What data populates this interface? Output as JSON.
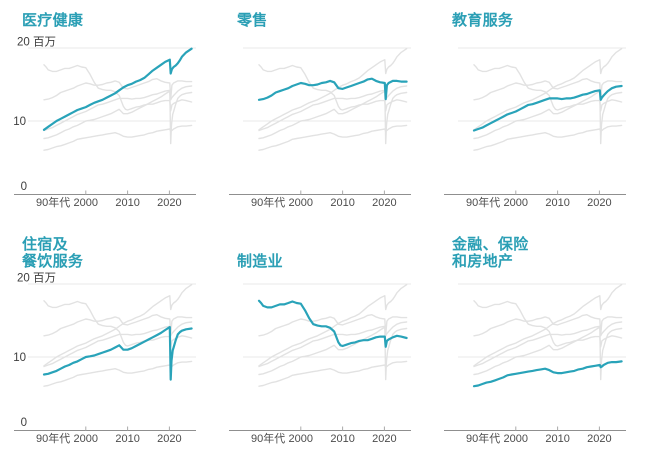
{
  "page": {
    "background": "#ffffff"
  },
  "colors": {
    "accent": "#29a3b9",
    "title_text": "#2b9fb5",
    "muted_line": "#e2e2e2",
    "gridline": "#e9e9e9",
    "axis_line": "#8f8f8f",
    "tick_mark": "#aaaaaa",
    "tick_label_text": "#4c4c4c",
    "y_label_text": "#3d3d3d"
  },
  "panels": [
    {
      "id": "healthcare",
      "title_lines": [
        "医疗健康"
      ],
      "series": "healthcare",
      "show_y_labels": true
    },
    {
      "id": "retail",
      "title_lines": [
        "零售"
      ],
      "series": "retail",
      "show_y_labels": false
    },
    {
      "id": "education",
      "title_lines": [
        "教育服务"
      ],
      "series": "education",
      "show_y_labels": false
    },
    {
      "id": "accommodation",
      "title_lines": [
        "住宿及",
        "餐饮服务"
      ],
      "series": "accommodation",
      "show_y_labels": true
    },
    {
      "id": "manufacturing",
      "title_lines": [
        "制造业"
      ],
      "series": "manufacturing",
      "show_y_labels": false
    },
    {
      "id": "finance",
      "title_lines": [
        "金融、保险",
        "和房地产"
      ],
      "series": "finance",
      "show_y_labels": false
    }
  ],
  "chart_data": {
    "type": "line",
    "unit": "百万",
    "x_range": [
      1989,
      2026
    ],
    "ylim": [
      0,
      20
    ],
    "grid": "horizontal-only",
    "legend_position": "none",
    "y_tick_labels": [
      {
        "value": 20,
        "label": "20 百万"
      },
      {
        "value": 10,
        "label": "10"
      },
      {
        "value": 0,
        "label": "0"
      }
    ],
    "x_tick_labels": [
      {
        "year": 1990,
        "label": "90年代",
        "tick": false,
        "anchor": "start"
      },
      {
        "year": 2000,
        "label": "2000",
        "tick": true,
        "anchor": "middle"
      },
      {
        "year": 2010,
        "label": "2010",
        "tick": true,
        "anchor": "middle"
      },
      {
        "year": 2020,
        "label": "2020",
        "tick": true,
        "anchor": "middle"
      }
    ],
    "series": [
      {
        "id": "healthcare",
        "name": "医疗健康",
        "values": [
          [
            1990,
            8.8
          ],
          [
            1991,
            9.2
          ],
          [
            1992,
            9.6
          ],
          [
            1993,
            10
          ],
          [
            1994,
            10.3
          ],
          [
            1995,
            10.6
          ],
          [
            1996,
            10.9
          ],
          [
            1997,
            11.2
          ],
          [
            1998,
            11.5
          ],
          [
            1999,
            11.7
          ],
          [
            2000,
            11.9
          ],
          [
            2001,
            12.2
          ],
          [
            2002,
            12.5
          ],
          [
            2003,
            12.7
          ],
          [
            2004,
            12.9
          ],
          [
            2005,
            13.2
          ],
          [
            2006,
            13.5
          ],
          [
            2007,
            13.8
          ],
          [
            2008,
            14.2
          ],
          [
            2009,
            14.6
          ],
          [
            2010,
            14.9
          ],
          [
            2011,
            15.1
          ],
          [
            2012,
            15.4
          ],
          [
            2013,
            15.6
          ],
          [
            2014,
            15.9
          ],
          [
            2015,
            16.4
          ],
          [
            2016,
            16.9
          ],
          [
            2017,
            17.3
          ],
          [
            2018,
            17.7
          ],
          [
            2019,
            18.1
          ],
          [
            2020.1,
            18.4
          ],
          [
            2020.3,
            16.5
          ],
          [
            2020.6,
            17.1
          ],
          [
            2021,
            17.4
          ],
          [
            2021.5,
            17.6
          ],
          [
            2022,
            17.9
          ],
          [
            2022.5,
            18.3
          ],
          [
            2023,
            18.8
          ],
          [
            2024,
            19.4
          ],
          [
            2025.3,
            19.9
          ]
        ]
      },
      {
        "id": "retail",
        "name": "零售",
        "values": [
          [
            1990,
            12.9
          ],
          [
            1991,
            13
          ],
          [
            1992,
            13.2
          ],
          [
            1993,
            13.5
          ],
          [
            1994,
            13.9
          ],
          [
            1995,
            14.1
          ],
          [
            1996,
            14.3
          ],
          [
            1997,
            14.5
          ],
          [
            1998,
            14.8
          ],
          [
            1999,
            15
          ],
          [
            2000,
            15.2
          ],
          [
            2001,
            15.1
          ],
          [
            2002,
            14.9
          ],
          [
            2003,
            14.9
          ],
          [
            2004,
            15
          ],
          [
            2005,
            15.2
          ],
          [
            2006,
            15.3
          ],
          [
            2007,
            15.5
          ],
          [
            2008,
            15.3
          ],
          [
            2009,
            14.5
          ],
          [
            2010,
            14.4
          ],
          [
            2011,
            14.6
          ],
          [
            2012,
            14.8
          ],
          [
            2013,
            15
          ],
          [
            2014,
            15.2
          ],
          [
            2015,
            15.4
          ],
          [
            2016,
            15.7
          ],
          [
            2017,
            15.8
          ],
          [
            2018,
            15.5
          ],
          [
            2019,
            15.3
          ],
          [
            2020.1,
            15.2
          ],
          [
            2020.3,
            13
          ],
          [
            2020.6,
            14.9
          ],
          [
            2021,
            15.2
          ],
          [
            2022,
            15.5
          ],
          [
            2023,
            15.5
          ],
          [
            2024,
            15.4
          ],
          [
            2025.3,
            15.4
          ]
        ]
      },
      {
        "id": "education",
        "name": "教育服务",
        "values": [
          [
            1990,
            8.7
          ],
          [
            1991,
            8.9
          ],
          [
            1992,
            9.1
          ],
          [
            1993,
            9.4
          ],
          [
            1994,
            9.7
          ],
          [
            1995,
            10
          ],
          [
            1996,
            10.3
          ],
          [
            1997,
            10.6
          ],
          [
            1998,
            10.9
          ],
          [
            1999,
            11.1
          ],
          [
            2000,
            11.3
          ],
          [
            2001,
            11.6
          ],
          [
            2002,
            11.9
          ],
          [
            2003,
            12.2
          ],
          [
            2004,
            12.3
          ],
          [
            2005,
            12.5
          ],
          [
            2006,
            12.7
          ],
          [
            2007,
            12.9
          ],
          [
            2008,
            13.1
          ],
          [
            2009,
            13.1
          ],
          [
            2010,
            13.1
          ],
          [
            2011,
            13
          ],
          [
            2012,
            13.1
          ],
          [
            2013,
            13.1
          ],
          [
            2014,
            13.2
          ],
          [
            2015,
            13.4
          ],
          [
            2016,
            13.6
          ],
          [
            2017,
            13.7
          ],
          [
            2018,
            13.9
          ],
          [
            2019,
            14.1
          ],
          [
            2020.1,
            14.2
          ],
          [
            2020.3,
            12.9
          ],
          [
            2020.6,
            13.2
          ],
          [
            2021,
            13.5
          ],
          [
            2021.5,
            13.8
          ],
          [
            2022,
            14.1
          ],
          [
            2023,
            14.5
          ],
          [
            2024,
            14.7
          ],
          [
            2025.3,
            14.8
          ]
        ]
      },
      {
        "id": "accommodation",
        "name": "住宿及餐饮服务",
        "values": [
          [
            1990,
            7.6
          ],
          [
            1991,
            7.7
          ],
          [
            1992,
            7.9
          ],
          [
            1993,
            8.1
          ],
          [
            1994,
            8.4
          ],
          [
            1995,
            8.7
          ],
          [
            1996,
            8.9
          ],
          [
            1997,
            9.2
          ],
          [
            1998,
            9.4
          ],
          [
            1999,
            9.7
          ],
          [
            2000,
            10
          ],
          [
            2001,
            10.1
          ],
          [
            2002,
            10.2
          ],
          [
            2003,
            10.4
          ],
          [
            2004,
            10.6
          ],
          [
            2005,
            10.8
          ],
          [
            2006,
            11
          ],
          [
            2007,
            11.3
          ],
          [
            2008,
            11.6
          ],
          [
            2009,
            11
          ],
          [
            2010,
            11
          ],
          [
            2011,
            11.2
          ],
          [
            2012,
            11.5
          ],
          [
            2013,
            11.8
          ],
          [
            2014,
            12.1
          ],
          [
            2015,
            12.4
          ],
          [
            2016,
            12.7
          ],
          [
            2017,
            13
          ],
          [
            2018,
            13.3
          ],
          [
            2019,
            13.7
          ],
          [
            2020.1,
            14.1
          ],
          [
            2020.3,
            6.9
          ],
          [
            2020.5,
            9.5
          ],
          [
            2020.8,
            10.9
          ],
          [
            2021,
            11.3
          ],
          [
            2021.5,
            12.3
          ],
          [
            2022,
            13.1
          ],
          [
            2022.5,
            13.4
          ],
          [
            2023,
            13.6
          ],
          [
            2024,
            13.8
          ],
          [
            2025.3,
            13.9
          ]
        ]
      },
      {
        "id": "manufacturing",
        "name": "制造业",
        "values": [
          [
            1990,
            17.7
          ],
          [
            1990.5,
            17.4
          ],
          [
            1991,
            17
          ],
          [
            1992,
            16.8
          ],
          [
            1993,
            16.8
          ],
          [
            1994,
            17
          ],
          [
            1995,
            17.2
          ],
          [
            1996,
            17.2
          ],
          [
            1997,
            17.4
          ],
          [
            1998,
            17.6
          ],
          [
            1999,
            17.4
          ],
          [
            2000,
            17.3
          ],
          [
            2001,
            16.4
          ],
          [
            2002,
            15.3
          ],
          [
            2003,
            14.5
          ],
          [
            2004,
            14.3
          ],
          [
            2005,
            14.2
          ],
          [
            2006,
            14.2
          ],
          [
            2007,
            14
          ],
          [
            2008,
            13.5
          ],
          [
            2009,
            12
          ],
          [
            2009.5,
            11.6
          ],
          [
            2010,
            11.5
          ],
          [
            2011,
            11.7
          ],
          [
            2012,
            11.9
          ],
          [
            2013,
            12
          ],
          [
            2014,
            12.2
          ],
          [
            2015,
            12.3
          ],
          [
            2016,
            12.3
          ],
          [
            2017,
            12.5
          ],
          [
            2018,
            12.7
          ],
          [
            2019,
            12.8
          ],
          [
            2020.1,
            12.8
          ],
          [
            2020.3,
            11.4
          ],
          [
            2020.6,
            12.2
          ],
          [
            2021,
            12.4
          ],
          [
            2022,
            12.7
          ],
          [
            2023,
            12.9
          ],
          [
            2024,
            12.8
          ],
          [
            2025.3,
            12.6
          ]
        ]
      },
      {
        "id": "finance",
        "name": "金融、保险和房地产",
        "values": [
          [
            1990,
            6
          ],
          [
            1991,
            6.1
          ],
          [
            1992,
            6.3
          ],
          [
            1993,
            6.5
          ],
          [
            1994,
            6.6
          ],
          [
            1995,
            6.8
          ],
          [
            1996,
            7
          ],
          [
            1997,
            7.2
          ],
          [
            1998,
            7.5
          ],
          [
            1999,
            7.6
          ],
          [
            2000,
            7.7
          ],
          [
            2001,
            7.8
          ],
          [
            2002,
            7.9
          ],
          [
            2003,
            8
          ],
          [
            2004,
            8.1
          ],
          [
            2005,
            8.2
          ],
          [
            2006,
            8.3
          ],
          [
            2007,
            8.4
          ],
          [
            2008,
            8.2
          ],
          [
            2009,
            7.9
          ],
          [
            2010,
            7.8
          ],
          [
            2011,
            7.8
          ],
          [
            2012,
            7.9
          ],
          [
            2013,
            8
          ],
          [
            2014,
            8.1
          ],
          [
            2015,
            8.3
          ],
          [
            2016,
            8.4
          ],
          [
            2017,
            8.6
          ],
          [
            2018,
            8.7
          ],
          [
            2019,
            8.8
          ],
          [
            2020.1,
            8.9
          ],
          [
            2020.3,
            8.6
          ],
          [
            2020.6,
            8.7
          ],
          [
            2021,
            8.9
          ],
          [
            2022,
            9.2
          ],
          [
            2023,
            9.3
          ],
          [
            2024,
            9.3
          ],
          [
            2025.3,
            9.4
          ]
        ]
      }
    ]
  }
}
